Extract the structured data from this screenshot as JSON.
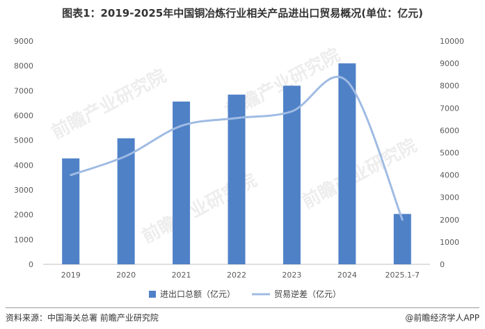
{
  "title": "图表1：2019-2025年中国铜冶炼行业相关产品进出口贸易概况(单位：亿元)",
  "footer": {
    "source": "资料来源：中国海关总署 前瞻产业研究院",
    "brand": "@前瞻经济学人APP"
  },
  "watermark": "前瞻产业研究院",
  "colors": {
    "bar": "#4f81c7",
    "line": "#9fbbe3"
  },
  "chart_data": {
    "type": "bar",
    "categories": [
      "2019",
      "2020",
      "2021",
      "2022",
      "2023",
      "2024",
      "2025.1-7"
    ],
    "series": [
      {
        "name": "进出口总额（亿元）",
        "type": "bar",
        "axis": "left",
        "values": [
          4270,
          5080,
          6560,
          6840,
          7200,
          8100,
          2030
        ]
      },
      {
        "name": "贸易逆差（亿元）",
        "type": "line",
        "axis": "right",
        "values": [
          4000,
          4850,
          6200,
          6550,
          6850,
          8200,
          2000
        ]
      }
    ],
    "ylim_left": [
      0,
      9000
    ],
    "yticks_left": [
      "0",
      "1000",
      "2000",
      "3000",
      "4000",
      "5000",
      "6000",
      "7000",
      "8000",
      "9000"
    ],
    "ylim_right": [
      0,
      10000
    ],
    "yticks_right": [
      "0",
      "1000",
      "2000",
      "3000",
      "4000",
      "5000",
      "6000",
      "7000",
      "8000",
      "9000",
      "10000"
    ],
    "grid": false,
    "legend_position": "bottom"
  }
}
